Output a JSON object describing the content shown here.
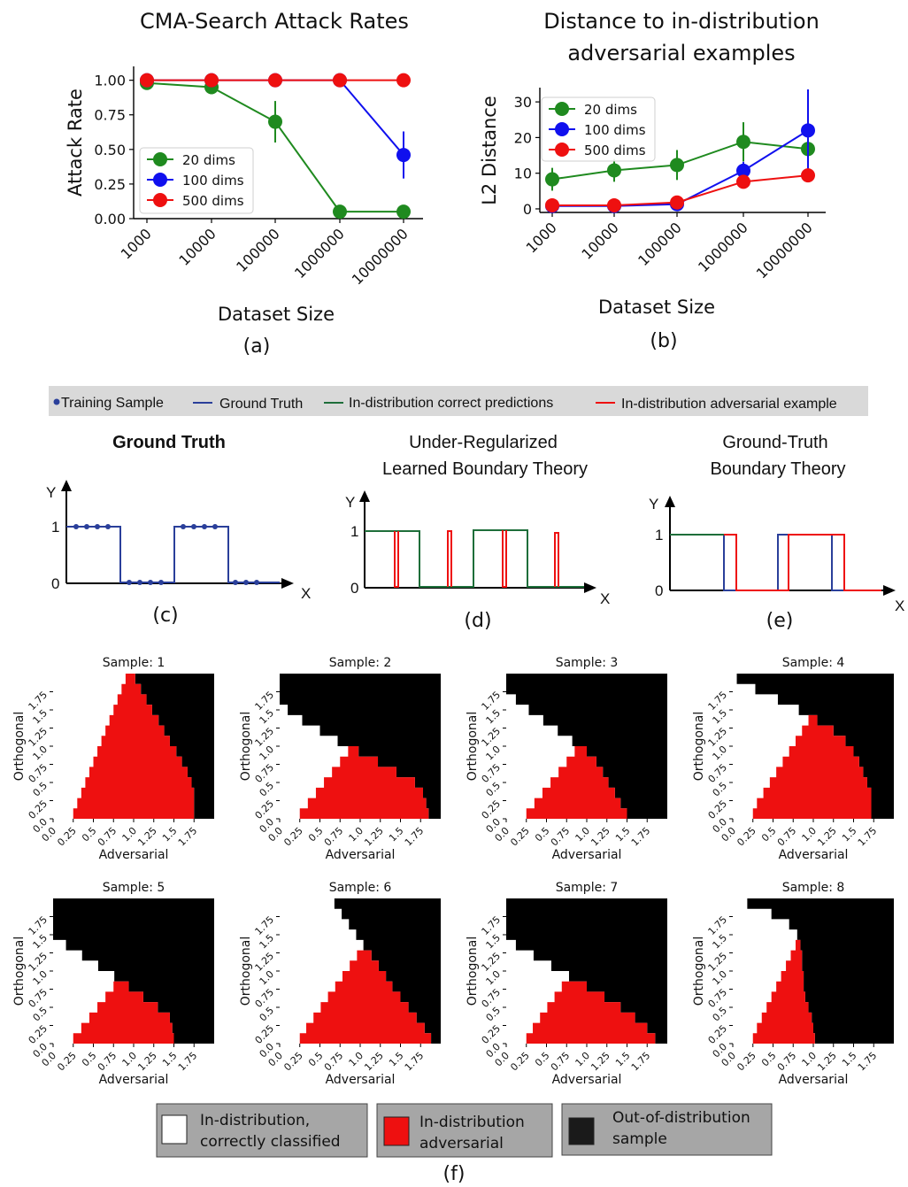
{
  "figure": {
    "panels": {
      "a": "(a)",
      "b": "(b)",
      "c": "(c)",
      "d": "(d)",
      "e": "(e)",
      "f": "(f)"
    },
    "colors": {
      "green": "#1f8a1f",
      "blue": "#1010ee",
      "red": "#ee1010",
      "navy": "#2a3f9a",
      "darkgreen": "#1e6e3a",
      "legendbar": "#d9d9d9",
      "legendbox": "#a6a6a6",
      "black": "#000000",
      "white": "#ffffff"
    }
  },
  "chart_data": [
    {
      "id": "a",
      "type": "line",
      "title": "CMA-Search Attack Rates",
      "xlabel": "Dataset Size",
      "ylabel": "Attack Rate",
      "categories": [
        "1000",
        "10000",
        "100000",
        "1000000",
        "10000000"
      ],
      "ylim": [
        0,
        1.1
      ],
      "yticks": [
        "0.00",
        "0.25",
        "0.50",
        "0.75",
        "1.00"
      ],
      "ytick_values": [
        0,
        0.25,
        0.5,
        0.75,
        1.0
      ],
      "legend": "center-left",
      "series": [
        {
          "name": "20 dims",
          "color": "#1f8a1f",
          "values": [
            0.98,
            0.95,
            0.7,
            0.05,
            0.05
          ],
          "err": [
            0,
            0,
            0.15,
            0,
            0
          ]
        },
        {
          "name": "100 dims",
          "color": "#1010ee",
          "values": [
            1.0,
            1.0,
            1.0,
            1.0,
            0.46
          ],
          "err": [
            0,
            0,
            0,
            0,
            0.17
          ]
        },
        {
          "name": "500 dims",
          "color": "#ee1010",
          "values": [
            1.0,
            1.0,
            1.0,
            1.0,
            1.0
          ],
          "err": [
            0,
            0,
            0,
            0,
            0
          ]
        }
      ]
    },
    {
      "id": "b",
      "type": "line",
      "title": "Distance to in-distribution adversarial examples",
      "title_lines": [
        "Distance to in-distribution",
        "adversarial examples"
      ],
      "xlabel": "Dataset Size",
      "ylabel": "L2 Distance",
      "categories": [
        "1000",
        "10000",
        "100000",
        "1000000",
        "10000000"
      ],
      "ylim": [
        -1,
        34
      ],
      "yticks": [
        "0",
        "10",
        "20",
        "30"
      ],
      "ytick_values": [
        0,
        10,
        20,
        30
      ],
      "legend": "top-left",
      "series": [
        {
          "name": "20 dims",
          "color": "#1f8a1f",
          "values": [
            8.3,
            10.8,
            12.3,
            18.8,
            16.8
          ],
          "err": [
            3.2,
            3.2,
            4.2,
            5.5,
            4.0
          ]
        },
        {
          "name": "100 dims",
          "color": "#1010ee",
          "values": [
            0.8,
            0.8,
            1.3,
            10.7,
            22.0
          ],
          "err": [
            0,
            0,
            0,
            2.5,
            11.5
          ]
        },
        {
          "name": "500 dims",
          "color": "#ee1010",
          "values": [
            1.0,
            1.0,
            1.8,
            7.6,
            9.4
          ],
          "err": [
            0,
            0,
            0,
            1.0,
            1.5
          ]
        }
      ]
    }
  ],
  "line_legend": {
    "items": [
      {
        "label": "Training Sample",
        "color": "#2a3f9a",
        "kind": "dot"
      },
      {
        "label": "Ground Truth",
        "color": "#2a3f9a",
        "kind": "line"
      },
      {
        "label": "In-distribution correct predictions",
        "color": "#1e6e3a",
        "kind": "line"
      },
      {
        "label": "In-distribution adversarial example",
        "color": "#ee1010",
        "kind": "line"
      }
    ]
  },
  "schematics": {
    "c": {
      "title": [
        "Ground Truth"
      ],
      "y": "Y",
      "x": "X",
      "one": "1",
      "zero": "0"
    },
    "d": {
      "title": [
        "Under-Regularized",
        "Learned Boundary Theory"
      ],
      "y": "Y",
      "x": "X",
      "one": "1",
      "zero": "0"
    },
    "e": {
      "title": [
        "Ground-Truth",
        "Boundary Theory"
      ],
      "y": "Y",
      "x": "X",
      "one": "1",
      "zero": "0"
    }
  },
  "heatmaps": {
    "xlabel": "Adversarial",
    "ylabel": "Orthogonal",
    "ticks": [
      "0.0",
      "0.25",
      "0.5",
      "0.75",
      "1.0",
      "1.25",
      "1.5",
      "1.75"
    ],
    "tick_values": [
      0,
      0.25,
      0.5,
      0.75,
      1.0,
      1.25,
      1.5,
      1.75
    ],
    "range": [
      0,
      2
    ],
    "samples": [
      {
        "title": "Sample: 1",
        "ood": [
          1.75,
          1.75,
          1.75,
          1.72,
          1.67,
          1.6,
          1.53,
          1.45,
          1.38,
          1.31,
          1.23,
          1.16,
          1.09,
          1.02
        ],
        "adv_start": [
          0.25,
          0.3,
          0.35,
          0.4,
          0.45,
          0.5,
          0.55,
          0.6,
          0.65,
          0.7,
          0.75,
          0.8,
          0.85,
          0.9
        ]
      },
      {
        "title": "Sample: 2",
        "ood": [
          1.85,
          1.82,
          1.78,
          1.68,
          1.45,
          1.22,
          0.98,
          0.72,
          0.5,
          0.28,
          0.1,
          0.0,
          0.0,
          0.0
        ],
        "adv_start": [
          0.25,
          0.35,
          0.45,
          0.55,
          0.65,
          0.75,
          0.85,
          0.95,
          1.05,
          1.15,
          1.25,
          1.35,
          1.45,
          1.55
        ]
      },
      {
        "title": "Sample: 3",
        "ood": [
          1.5,
          1.42,
          1.35,
          1.27,
          1.2,
          1.12,
          1.0,
          0.82,
          0.64,
          0.46,
          0.28,
          0.12,
          0.0,
          0.0
        ],
        "adv_start": [
          0.25,
          0.35,
          0.45,
          0.55,
          0.65,
          0.75,
          0.85,
          0.95,
          1.05,
          1.15,
          1.25,
          1.35,
          1.45,
          1.55
        ]
      },
      {
        "title": "Sample: 4",
        "ood": [
          1.72,
          1.72,
          1.72,
          1.67,
          1.62,
          1.57,
          1.5,
          1.4,
          1.25,
          1.05,
          0.82,
          0.56,
          0.28,
          0.05
        ],
        "adv_start": [
          0.25,
          0.3,
          0.38,
          0.46,
          0.54,
          0.62,
          0.7,
          0.78,
          0.86,
          0.94,
          1.02,
          1.1,
          1.18,
          1.26
        ]
      },
      {
        "title": "Sample: 5",
        "ood": [
          1.5,
          1.48,
          1.45,
          1.3,
          1.12,
          0.94,
          0.76,
          0.56,
          0.36,
          0.16,
          0.0,
          0.0,
          0.0,
          0.0
        ],
        "adv_start": [
          0.25,
          0.35,
          0.45,
          0.55,
          0.65,
          0.75,
          0.85,
          0.95,
          1.05,
          1.15,
          1.25,
          1.35,
          1.45,
          1.55
        ]
      },
      {
        "title": "Sample: 6",
        "ood": [
          1.88,
          1.8,
          1.7,
          1.6,
          1.5,
          1.4,
          1.32,
          1.23,
          1.14,
          1.04,
          0.95,
          0.86,
          0.77,
          0.68
        ],
        "adv_start": [
          0.25,
          0.33,
          0.42,
          0.51,
          0.6,
          0.69,
          0.78,
          0.87,
          0.96,
          1.05,
          1.14,
          1.23,
          1.32,
          1.41
        ]
      },
      {
        "title": "Sample: 7",
        "ood": [
          1.85,
          1.75,
          1.6,
          1.42,
          1.22,
          1.0,
          0.78,
          0.56,
          0.34,
          0.12,
          0.0,
          0.0,
          0.0,
          0.0
        ],
        "adv_start": [
          0.25,
          0.33,
          0.42,
          0.51,
          0.6,
          0.69,
          0.78,
          0.87,
          0.96,
          1.05,
          1.14,
          1.23,
          1.32,
          1.41
        ]
      },
      {
        "title": "Sample: 8",
        "ood": [
          1.02,
          1.0,
          0.98,
          0.94,
          0.9,
          0.88,
          0.88,
          0.86,
          0.86,
          0.84,
          0.8,
          0.7,
          0.48,
          0.18
        ],
        "adv_start": [
          0.25,
          0.3,
          0.36,
          0.42,
          0.48,
          0.54,
          0.6,
          0.66,
          0.72,
          0.78,
          0.84,
          0.9,
          0.96,
          1.02
        ]
      }
    ]
  },
  "heatmap_legend": {
    "items": [
      {
        "label": "In-distribution, correctly classified",
        "lines": [
          "In-distribution,",
          "correctly classified"
        ],
        "swatch": "#ffffff"
      },
      {
        "label": "In-distribution adversarial",
        "lines": [
          "In-distribution",
          "adversarial"
        ],
        "swatch": "#ee1010"
      },
      {
        "label": "Out-of-distribution sample",
        "lines": [
          "Out-of-distribution",
          "sample"
        ],
        "swatch": "#000000"
      }
    ]
  }
}
